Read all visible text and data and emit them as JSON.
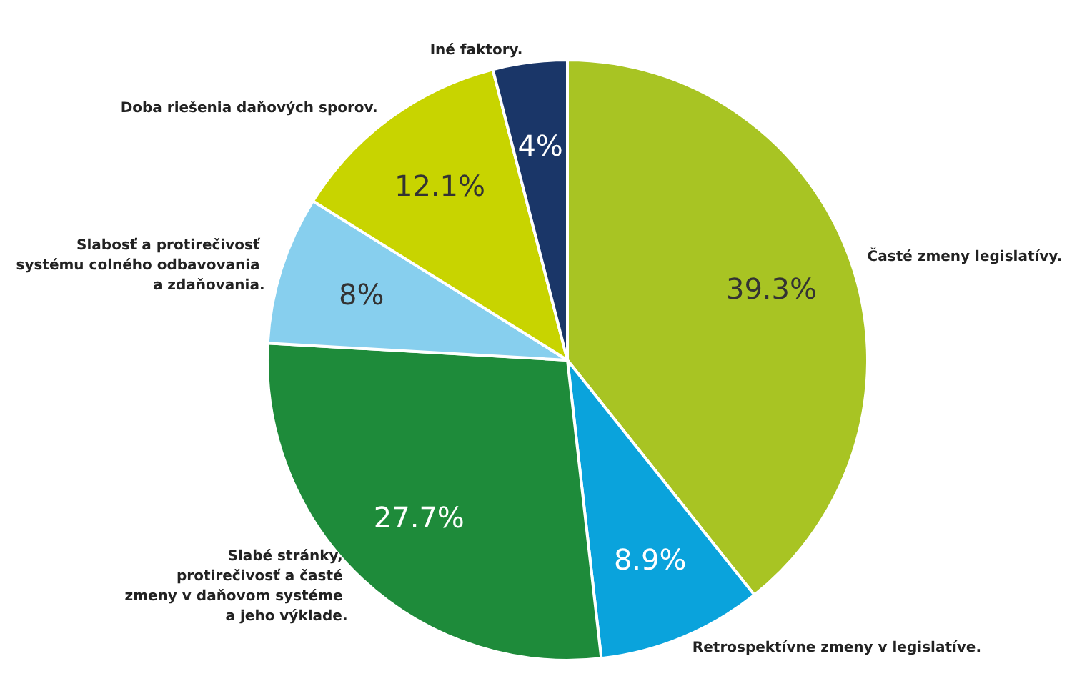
{
  "chart_data": {
    "type": "pie",
    "categories": [
      "Časté zmeny legislatívy.",
      "Retrospektívne zmeny v legislatíve.",
      "Slabé stránky, protirečivosť a časté zmeny v daňovom systéme a jeho výklade.",
      "Slabosť a protirečivosť systému colného odbavovania a zdaňovania.",
      "Doba riešenia daňových sporov.",
      "Iné faktory."
    ],
    "values": [
      39.3,
      8.9,
      27.7,
      8,
      12.1,
      4
    ],
    "colors": [
      "#a8c423",
      "#0aa3dc",
      "#1e8b3a",
      "#87cfee",
      "#c8d400",
      "#1a3668"
    ],
    "value_labels": [
      "39.3%",
      "8.9%",
      "27.7%",
      "8%",
      "12.1%",
      "4%"
    ],
    "legend": false
  }
}
